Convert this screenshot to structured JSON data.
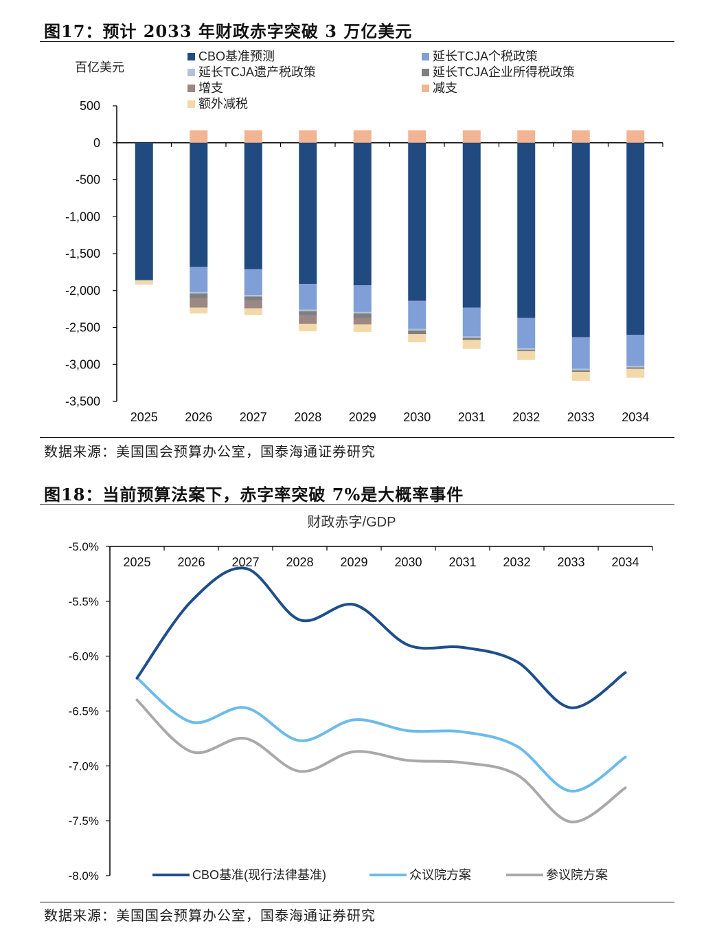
{
  "figure17": {
    "title": "图17：预计 2033 年财政赤字突破 3 万亿美元",
    "source": "数据来源：美国国会预算办公室，国泰海通证券研究",
    "chart_data": {
      "type": "bar",
      "stacked": true,
      "unit_label": "百亿美元",
      "categories": [
        "2025",
        "2026",
        "2027",
        "2028",
        "2029",
        "2030",
        "2031",
        "2032",
        "2033",
        "2034"
      ],
      "ylim": [
        -3500,
        500
      ],
      "yticks": [
        500,
        0,
        -500,
        -1000,
        -1500,
        -2000,
        -2500,
        -3000,
        -3500
      ],
      "ytick_labels": [
        "500",
        "0",
        "-500",
        "-1,000",
        "-1,500",
        "-2,000",
        "-2,500",
        "-3,000",
        "-3,500"
      ],
      "legend_position": "top",
      "series": [
        {
          "name": "CBO基准预测",
          "color": "#204a80",
          "values": [
            -1860,
            -1680,
            -1710,
            -1910,
            -1930,
            -2140,
            -2230,
            -2370,
            -2630,
            -2600
          ]
        },
        {
          "name": "延长TCJA个税政策",
          "color": "#7f9fd6",
          "values": [
            0,
            -340,
            -350,
            -350,
            -360,
            -380,
            -390,
            -410,
            -430,
            -420
          ]
        },
        {
          "name": "延长TCJA遗产税政策",
          "color": "#b4c2d6",
          "values": [
            0,
            -20,
            -20,
            -20,
            -20,
            -20,
            -20,
            -20,
            -20,
            -20
          ]
        },
        {
          "name": "延长TCJA企业所得税政策",
          "color": "#7f7f7f",
          "values": [
            0,
            -60,
            -60,
            -60,
            -60,
            -50,
            -30,
            -20,
            -20,
            -20
          ]
        },
        {
          "name": "增支",
          "color": "#9b8783",
          "values": [
            0,
            -130,
            -100,
            -110,
            -90,
            0,
            0,
            0,
            0,
            0
          ]
        },
        {
          "name": "减支",
          "color": "#f2b594",
          "values": [
            0,
            170,
            170,
            170,
            170,
            170,
            170,
            170,
            170,
            170
          ]
        },
        {
          "name": "额外减税",
          "color": "#f3d8a9",
          "values": [
            -60,
            -80,
            -90,
            -100,
            -100,
            -110,
            -120,
            -120,
            -120,
            -120
          ]
        }
      ]
    }
  },
  "figure18": {
    "title": "图18：当前预算法案下，赤字率突破 7%是大概率事件",
    "source": "数据来源：美国国会预算办公室，国泰海通证券研究",
    "chart_data": {
      "type": "line",
      "title": "财政赤字/GDP",
      "x": [
        "2025",
        "2026",
        "2027",
        "2028",
        "2029",
        "2030",
        "2031",
        "2032",
        "2033",
        "2034"
      ],
      "ylim": [
        -8.0,
        -5.0
      ],
      "yticks": [
        -5.0,
        -5.5,
        -6.0,
        -6.5,
        -7.0,
        -7.5,
        -8.0
      ],
      "ytick_labels": [
        "-5.0%",
        "-5.5%",
        "-6.0%",
        "-6.5%",
        "-7.0%",
        "-7.5%",
        "-8.0%"
      ],
      "legend_position": "bottom",
      "series": [
        {
          "name": "CBO基准(现行法律基准)",
          "color": "#1f4e8c",
          "values": [
            -6.2,
            -5.5,
            -5.2,
            -5.67,
            -5.53,
            -5.9,
            -5.92,
            -6.05,
            -6.47,
            -6.15
          ]
        },
        {
          "name": "众议院方案",
          "color": "#6cbbea",
          "values": [
            -6.2,
            -6.6,
            -6.47,
            -6.77,
            -6.58,
            -6.68,
            -6.69,
            -6.82,
            -7.23,
            -6.92
          ]
        },
        {
          "name": "参议院方案",
          "color": "#a9a9a9",
          "values": [
            -6.4,
            -6.87,
            -6.75,
            -7.05,
            -6.87,
            -6.95,
            -6.97,
            -7.08,
            -7.51,
            -7.2
          ]
        }
      ]
    }
  }
}
